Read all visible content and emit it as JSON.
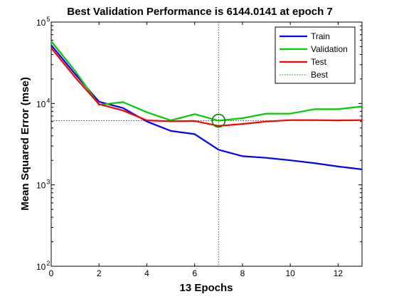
{
  "chart_data": {
    "type": "line",
    "title": "Best Validation Performance is 6144.0141 at epoch 7",
    "xlabel": "13 Epochs",
    "ylabel": "Mean Squared Error  (mse)",
    "xlim": [
      0,
      13
    ],
    "ylim": [
      100,
      100000
    ],
    "yscale": "log",
    "x_ticks": [
      0,
      2,
      4,
      6,
      8,
      10,
      12
    ],
    "y_ticks": [
      {
        "value": 100,
        "base": "10",
        "exp": "2"
      },
      {
        "value": 1000,
        "base": "10",
        "exp": "3"
      },
      {
        "value": 10000,
        "base": "10",
        "exp": "4"
      },
      {
        "value": 100000,
        "base": "10",
        "exp": "5"
      }
    ],
    "grid": false,
    "legend_position": "top-right",
    "series": [
      {
        "name": "Train",
        "color": "#0000ff",
        "style": "solid",
        "x": [
          0,
          1,
          2,
          3,
          4,
          5,
          6,
          7,
          8,
          9,
          10,
          11,
          12,
          13
        ],
        "y": [
          52000,
          23000,
          10500,
          8800,
          6000,
          4600,
          4200,
          2700,
          2250,
          2150,
          2000,
          1850,
          1680,
          1550
        ]
      },
      {
        "name": "Validation",
        "color": "#00cc00",
        "style": "solid",
        "x": [
          0,
          1,
          2,
          3,
          4,
          5,
          6,
          7,
          8,
          9,
          10,
          11,
          12,
          13
        ],
        "y": [
          58000,
          25000,
          9600,
          10400,
          7800,
          6200,
          7400,
          6144.0141,
          6600,
          7500,
          7500,
          8500,
          8500,
          9200
        ]
      },
      {
        "name": "Test",
        "color": "#ff0000",
        "style": "solid",
        "x": [
          0,
          1,
          2,
          3,
          4,
          5,
          6,
          7,
          8,
          9,
          10,
          11,
          12,
          13
        ],
        "y": [
          48000,
          21000,
          9800,
          8200,
          6200,
          6050,
          6100,
          5300,
          5600,
          6000,
          6250,
          6250,
          6200,
          6250
        ]
      }
    ],
    "best": {
      "label": "Best",
      "color": "#008800",
      "style": "dotted",
      "epoch": 7,
      "value": 6144.0141
    }
  }
}
